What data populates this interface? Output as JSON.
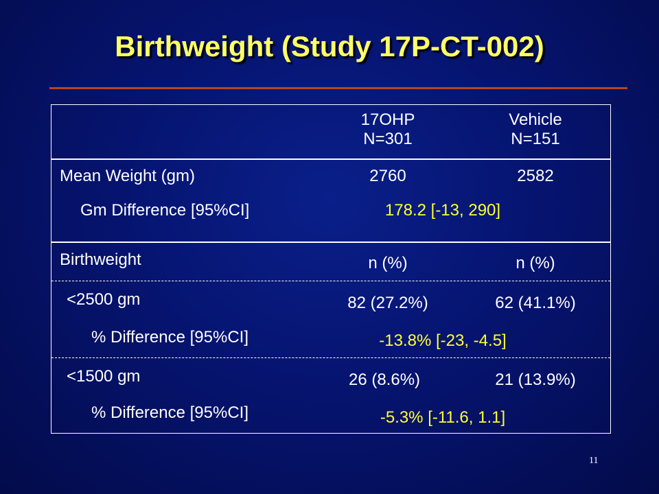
{
  "slide": {
    "title": "Birthweight (Study 17P-CT-002)",
    "page_number": "11"
  },
  "table": {
    "header": {
      "col1": {
        "line1": "17OHP",
        "line2": "N=301"
      },
      "col2": {
        "line1": "Vehicle",
        "line2": "N=151"
      }
    },
    "mean_weight": {
      "label": "Mean Weight (gm)",
      "col1": "2760",
      "col2": "2582"
    },
    "gm_difference": {
      "label": "Gm Difference [95%CI]",
      "value": "178.2  [-13, 290]"
    },
    "birthweight": {
      "label": "Birthweight",
      "col1": "n      (%)",
      "col2": "n    (%)"
    },
    "under_2500": {
      "label": "<2500 gm",
      "col1": "82 (27.2%)",
      "col2": "62 (41.1%)",
      "diff_label": "% Difference [95%CI]",
      "diff_value": "-13.8% [-23, -4.5]"
    },
    "under_1500": {
      "label": "<1500 gm",
      "col1": "26 (8.6%)",
      "col2": "21 (13.9%)",
      "diff_label": "% Difference [95%CI]",
      "diff_value": "-5.3%  [-11.6, 1.1]"
    }
  },
  "colors": {
    "background": "#061470",
    "title": "#ffff66",
    "highlight": "#ffff33",
    "rule": "#b8451f"
  }
}
